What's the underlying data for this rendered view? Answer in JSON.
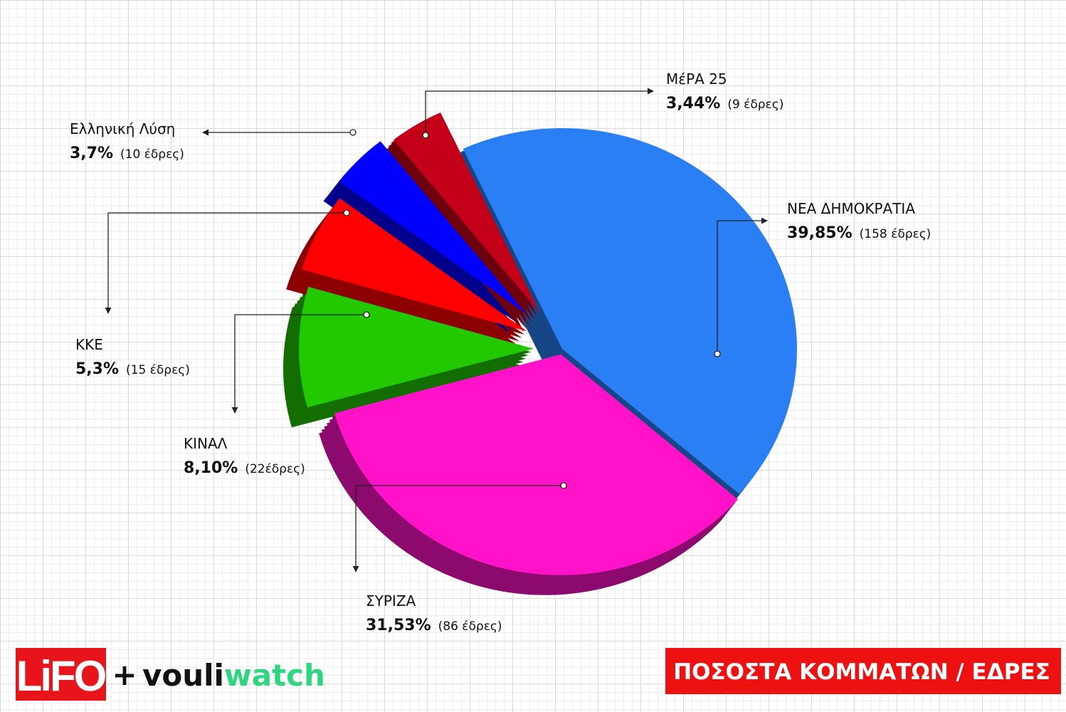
{
  "chart_data": {
    "type": "pie",
    "title": "ΠΟΣΟΣΤΑ ΚΟΜΜΑΤΩΝ / ΕΔΡΕΣ",
    "categories": [
      "ΝΕΑ ΔΗΜΟΚΡΑΤΙΑ",
      "ΣΥΡΙΖΑ",
      "ΚΙΝΑΛ",
      "ΚΚΕ",
      "Ελληνική Λύση",
      "ΜέΡΑ 25"
    ],
    "values": [
      39.85,
      31.53,
      8.1,
      5.3,
      3.7,
      3.44
    ],
    "value_labels": [
      "39,85%",
      "31,53%",
      "8,10%",
      "5,3%",
      "3,7%",
      "3,44%"
    ],
    "seat_labels": [
      "(158 έδρες)",
      "(86 έδρες)",
      "(22έδρες)",
      "(15 έδρες)",
      "(10 έδρες)",
      "(9 έδρες)"
    ],
    "colors": [
      "#2a7ff5",
      "#ff12c8",
      "#22c800",
      "#ff0000",
      "#0000ff",
      "#c40018"
    ]
  },
  "branding": {
    "logo": "LiFO",
    "plus": "+",
    "vouli": "vouli",
    "watch": "watch"
  }
}
